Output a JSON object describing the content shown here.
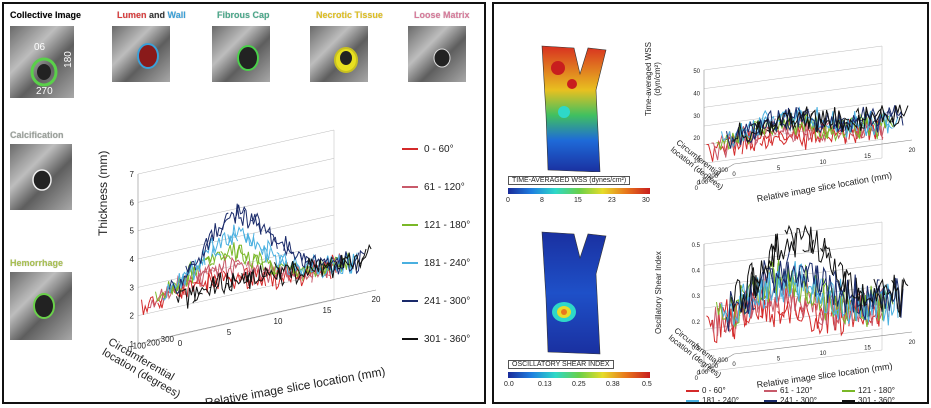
{
  "left": {
    "image_labels": [
      {
        "text": "Collective Image",
        "color": "#111111"
      },
      {
        "text_a": "Lumen",
        "text_b": " and ",
        "text_c": "Wall",
        "color_a": "#d83a3a",
        "color_b": "#333333",
        "color_c": "#3aa0d8"
      },
      {
        "text": "Fibrous Cap",
        "color": "#4aa88a"
      },
      {
        "text": "Necrotic Tissue",
        "color": "#e0c020"
      },
      {
        "text": "Loose Matrix",
        "color": "#d87a9a"
      }
    ],
    "calcification_label": "Calcification",
    "hemorrhage_label": "Hemorrhage",
    "angle_labels": [
      "06",
      "180",
      "270"
    ],
    "legend": [
      {
        "label": "0 - 60°",
        "color": "#d42a2a"
      },
      {
        "label": "61 - 120°",
        "color": "#c85a6a"
      },
      {
        "label": "121 - 180°",
        "color": "#7ab828"
      },
      {
        "label": "181 - 240°",
        "color": "#4ab0e0"
      },
      {
        "label": "241 - 300°",
        "color": "#1a2a6a"
      },
      {
        "label": "301 - 360°",
        "color": "#111111"
      }
    ],
    "z_axis_label": "Thickness (mm)",
    "z_ticks": [
      "1",
      "2",
      "3",
      "4",
      "5",
      "6",
      "7"
    ],
    "y_axis_label_line1": "Circumferential",
    "y_axis_label_line2": "location (degrees)",
    "y_ticks": [
      "0",
      "100",
      "200",
      "300"
    ],
    "x_axis_label": "Relative image slice location (mm)",
    "x_ticks": [
      "0",
      "5",
      "10",
      "15",
      "20"
    ]
  },
  "right": {
    "wss_colorbar_title": "TIME-AVERAGED WSS (dynes/cm²)",
    "wss_ticks": [
      "0",
      "8",
      "15",
      "23",
      "30"
    ],
    "osi_colorbar_title": "OSCILLATORY SHEAR INDEX",
    "osi_ticks": [
      "0.0",
      "0.13",
      "0.25",
      "0.38",
      "0.5"
    ],
    "top_chart": {
      "z_label_line1": "Time-averaged WSS",
      "z_label_line2": "(dyn/cm²)",
      "z_ticks": [
        "0",
        "10",
        "20",
        "30",
        "40",
        "50"
      ],
      "y_label_line1": "Circumferential",
      "y_label_line2": "location (degrees)",
      "y_ticks": [
        "0",
        "100",
        "200",
        "300"
      ],
      "x_label": "Relative image slice location (mm)",
      "x_ticks": [
        "0",
        "5",
        "10",
        "15",
        "20"
      ]
    },
    "bottom_chart": {
      "z_label": "Oscillatory Shear Index",
      "z_ticks": [
        "0",
        "0.1",
        "0.2",
        "0.3",
        "0.4",
        "0.5"
      ],
      "y_label_line1": "Circumferential",
      "y_label_line2": "location (degrees)",
      "y_ticks": [
        "0",
        "100",
        "200",
        "300"
      ],
      "x_label": "Relative image slice location (mm)",
      "x_ticks": [
        "0",
        "5",
        "10",
        "15",
        "20"
      ]
    },
    "legend": [
      {
        "label": "0 - 60°",
        "color": "#d42a2a"
      },
      {
        "label": "61 - 120°",
        "color": "#c85a6a"
      },
      {
        "label": "121 - 180°",
        "color": "#7ab828"
      },
      {
        "label": "181 - 240°",
        "color": "#4ab0e0"
      },
      {
        "label": "241 - 300°",
        "color": "#1a2a6a"
      },
      {
        "label": "301 - 360°",
        "color": "#111111"
      }
    ]
  }
}
